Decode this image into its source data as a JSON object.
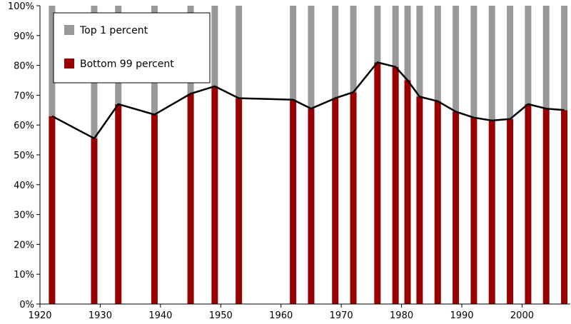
{
  "chart_data": {
    "type": "bar",
    "stacked": true,
    "percent_scale": true,
    "title": "",
    "xlabel": "",
    "ylabel": "",
    "xlim": [
      1920,
      2008
    ],
    "ylim": [
      0,
      100
    ],
    "x_ticks": [
      "1920",
      "1930",
      "1940",
      "1950",
      "1960",
      "1970",
      "1980",
      "1990",
      "2000"
    ],
    "y_ticks": [
      "0%",
      "10%",
      "20%",
      "30%",
      "40%",
      "50%",
      "60%",
      "70%",
      "80%",
      "90%",
      "100%"
    ],
    "x": [
      1922,
      1929,
      1933,
      1939,
      1945,
      1949,
      1953,
      1962,
      1965,
      1969,
      1972,
      1976,
      1979,
      1981,
      1983,
      1986,
      1989,
      1992,
      1995,
      1998,
      2001,
      2004,
      2007
    ],
    "series": [
      {
        "name": "Bottom 99 percent",
        "color": "#990000",
        "values": [
          63,
          55.5,
          67,
          63.5,
          70.5,
          73,
          69,
          68.5,
          65.5,
          69,
          71,
          81,
          79.5,
          75,
          69.5,
          68,
          64.5,
          62.5,
          61.5,
          62,
          67,
          65.5,
          65
        ]
      },
      {
        "name": "Top 1 percent",
        "color": "#999999",
        "values": [
          37,
          44.5,
          33,
          36.5,
          29.5,
          27,
          31,
          31.5,
          34.5,
          31,
          29,
          19,
          20.5,
          25,
          30.5,
          32,
          35.5,
          37.5,
          38.5,
          38,
          33,
          34.5,
          35
        ]
      }
    ],
    "trend_line": {
      "series": "Bottom 99 percent",
      "color": "#000000"
    },
    "grid": false,
    "legend": {
      "position": "top-left",
      "entries": [
        {
          "label": "Top 1 percent",
          "color": "#999999"
        },
        {
          "label": "Bottom 99 percent",
          "color": "#990000"
        }
      ]
    }
  }
}
